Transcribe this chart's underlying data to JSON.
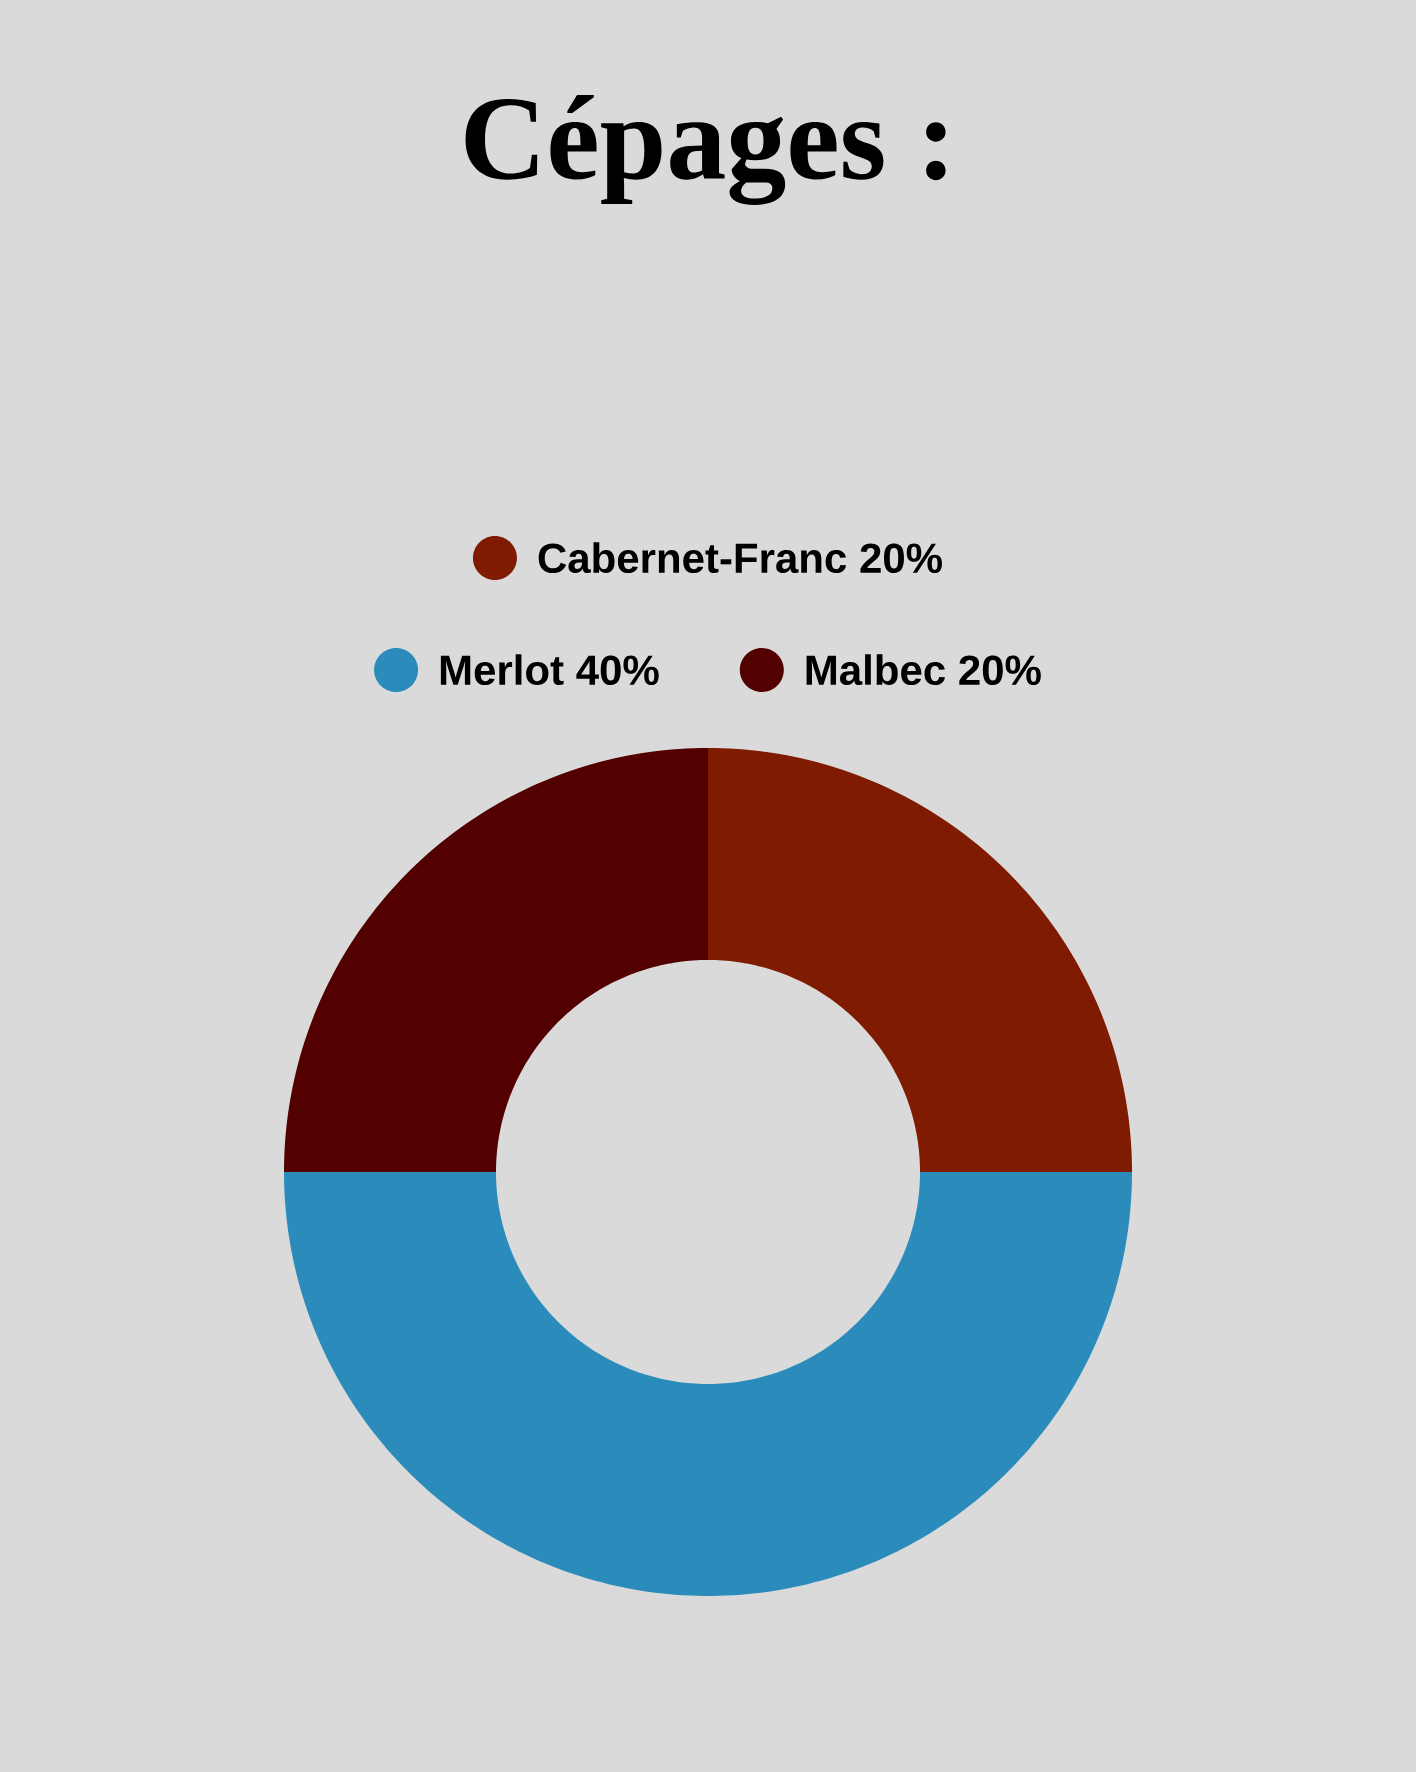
{
  "chart_data": {
    "type": "donut",
    "title": "Cépages :",
    "categories": [
      "Cabernet-Franc",
      "Merlot",
      "Malbec"
    ],
    "values": [
      20,
      40,
      20
    ],
    "value_labels": [
      "20%",
      "40%",
      "20%"
    ],
    "colors": [
      "#7f1b00",
      "#2b8bbb",
      "#520000"
    ],
    "legend": "top"
  }
}
